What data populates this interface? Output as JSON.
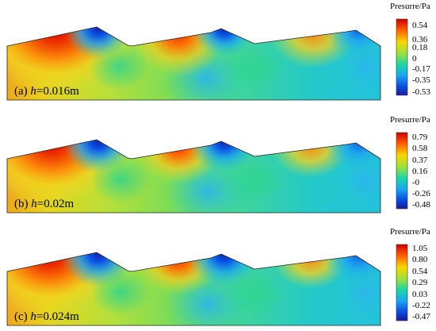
{
  "colorbar": {
    "title": "Presurre/Pa",
    "colors": [
      "#cc0000",
      "#ff6a00",
      "#f7e300",
      "#a8e03c",
      "#19d6a6",
      "#1aa8f0",
      "#0a4fe0",
      "#1a1a99"
    ]
  },
  "panels": [
    {
      "label_prefix": "(a) ",
      "label_var": "h",
      "label_value": "=0.016m",
      "ticks": [
        "0.54",
        "0.36",
        "0.18",
        "0",
        "-0.17",
        "-0.35",
        "-0.53"
      ]
    },
    {
      "label_prefix": "(b) ",
      "label_var": "h",
      "label_value": "=0.02m",
      "ticks": [
        "0.79",
        "0.58",
        "0.37",
        "0.16",
        "-0",
        "-0.26",
        "-0.48"
      ]
    },
    {
      "label_prefix": "(c) ",
      "label_var": "h",
      "label_value": "=0.024m",
      "ticks": [
        "1.05",
        "0.80",
        "0.54",
        "0.29",
        "0.03",
        "-0.22",
        "-0.47"
      ]
    }
  ]
}
